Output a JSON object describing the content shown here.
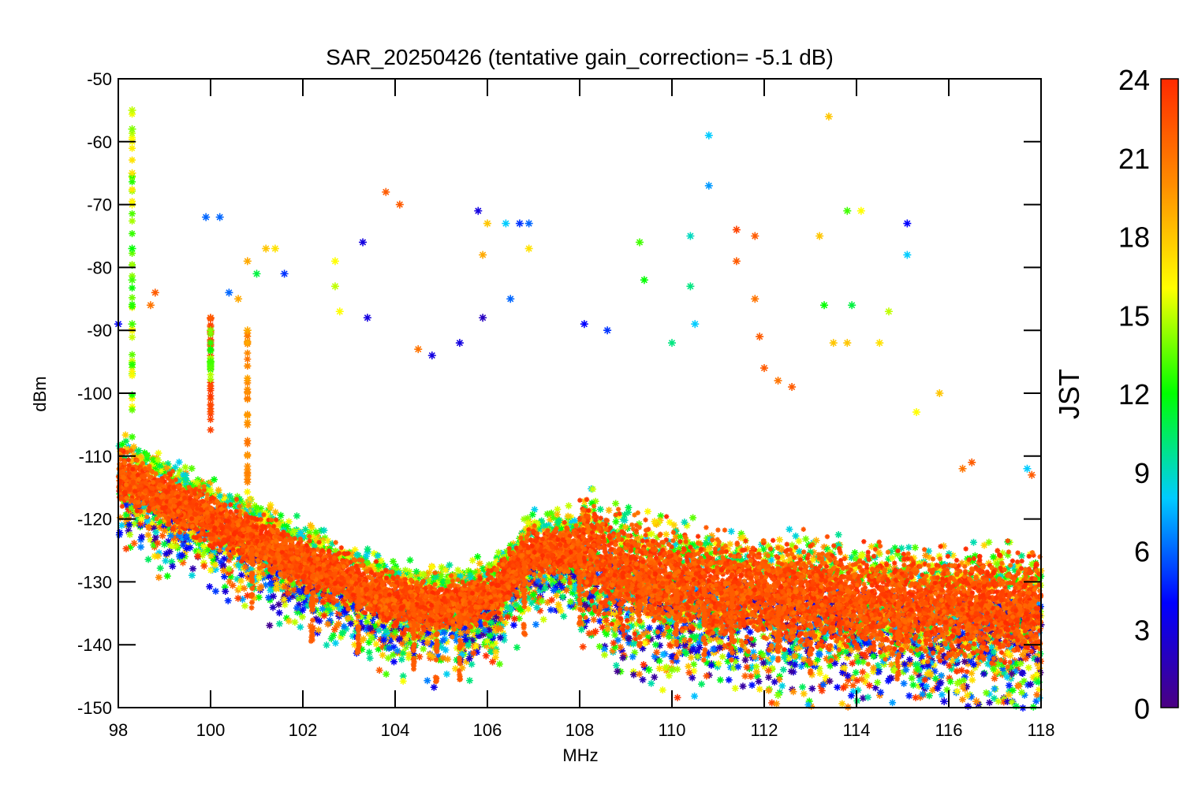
{
  "chart_data": {
    "type": "scatter",
    "title": "SAR_20250426 (tentative gain_correction= -5.1 dB)",
    "xlabel": "MHz",
    "ylabel": "dBm",
    "xlim": [
      98,
      118
    ],
    "ylim": [
      -150,
      -50
    ],
    "x_ticks": [
      "98",
      "100",
      "102",
      "104",
      "106",
      "108",
      "110",
      "112",
      "114",
      "116",
      "118"
    ],
    "x_tick_values": [
      98,
      100,
      102,
      104,
      106,
      108,
      110,
      112,
      114,
      116,
      118
    ],
    "y_ticks": [
      "-50",
      "-60",
      "-70",
      "-80",
      "-90",
      "-100",
      "-110",
      "-120",
      "-130",
      "-140",
      "-150"
    ],
    "y_tick_values": [
      -50,
      -60,
      -70,
      -80,
      -90,
      -100,
      -110,
      -120,
      -130,
      -140,
      -150
    ],
    "grid": false,
    "marker": "asterisk",
    "color_dimension": {
      "label": "JST",
      "range": [
        0,
        24
      ],
      "ticks": [
        "0",
        "3",
        "6",
        "9",
        "12",
        "15",
        "18",
        "21",
        "24"
      ],
      "tick_values": [
        0,
        3,
        6,
        9,
        12,
        15,
        18,
        21,
        24
      ],
      "colormap": [
        "#4b0082",
        "#0000ff",
        "#00ccff",
        "#00ff00",
        "#ffff00",
        "#ff8c00",
        "#ff2a00"
      ]
    },
    "noise_floor": {
      "description_x": [
        98,
        100,
        102,
        104,
        105,
        106,
        106.5,
        107,
        108,
        109,
        110,
        112,
        114,
        116,
        118
      ],
      "y": [
        -113,
        -120,
        -127,
        -133,
        -134,
        -133,
        -129,
        -125,
        -125,
        -128,
        -130,
        -132,
        -133,
        -134,
        -134
      ]
    },
    "points": [
      {
        "x": 98.3,
        "y": -55,
        "t": 15
      },
      {
        "x": 98.3,
        "y": -58,
        "t": 14
      },
      {
        "x": 98.3,
        "y": -60,
        "t": 16
      },
      {
        "x": 98.3,
        "y": -65,
        "t": 17
      },
      {
        "x": 98.3,
        "y": -70,
        "t": 16
      },
      {
        "x": 98.3,
        "y": -77,
        "t": 12
      },
      {
        "x": 98.3,
        "y": -82,
        "t": 13
      },
      {
        "x": 98.3,
        "y": -89,
        "t": 13
      },
      {
        "x": 98.0,
        "y": -89,
        "t": 4
      },
      {
        "x": 98.8,
        "y": -84,
        "t": 22
      },
      {
        "x": 98.7,
        "y": -86,
        "t": 21
      },
      {
        "x": 99.9,
        "y": -72,
        "t": 6
      },
      {
        "x": 100.2,
        "y": -72,
        "t": 6
      },
      {
        "x": 100.0,
        "y": -88,
        "t": 22
      },
      {
        "x": 100.0,
        "y": -90,
        "t": 14
      },
      {
        "x": 100.0,
        "y": -95,
        "t": 13
      },
      {
        "x": 100.4,
        "y": -84,
        "t": 6
      },
      {
        "x": 100.6,
        "y": -85,
        "t": 19
      },
      {
        "x": 100.8,
        "y": -79,
        "t": 19
      },
      {
        "x": 100.8,
        "y": -90,
        "t": 19
      },
      {
        "x": 101.2,
        "y": -77,
        "t": 18
      },
      {
        "x": 101.4,
        "y": -77,
        "t": 17
      },
      {
        "x": 101.6,
        "y": -81,
        "t": 5
      },
      {
        "x": 101.0,
        "y": -81,
        "t": 11
      },
      {
        "x": 102.7,
        "y": -79,
        "t": 16
      },
      {
        "x": 102.7,
        "y": -83,
        "t": 15
      },
      {
        "x": 102.8,
        "y": -87,
        "t": 16
      },
      {
        "x": 103.3,
        "y": -76,
        "t": 3
      },
      {
        "x": 103.4,
        "y": -88,
        "t": 3
      },
      {
        "x": 103.8,
        "y": -68,
        "t": 22
      },
      {
        "x": 104.1,
        "y": -70,
        "t": 22
      },
      {
        "x": 104.5,
        "y": -93,
        "t": 21
      },
      {
        "x": 104.8,
        "y": -94,
        "t": 3
      },
      {
        "x": 105.4,
        "y": -92,
        "t": 3
      },
      {
        "x": 105.8,
        "y": -71,
        "t": 3
      },
      {
        "x": 106.0,
        "y": -73,
        "t": 18
      },
      {
        "x": 105.9,
        "y": -78,
        "t": 19
      },
      {
        "x": 106.4,
        "y": -73,
        "t": 8
      },
      {
        "x": 106.7,
        "y": -73,
        "t": 5
      },
      {
        "x": 106.9,
        "y": -73,
        "t": 6
      },
      {
        "x": 106.9,
        "y": -77,
        "t": 17
      },
      {
        "x": 106.5,
        "y": -85,
        "t": 6
      },
      {
        "x": 105.9,
        "y": -88,
        "t": 2
      },
      {
        "x": 108.1,
        "y": -89,
        "t": 4
      },
      {
        "x": 108.6,
        "y": -90,
        "t": 5
      },
      {
        "x": 109.3,
        "y": -76,
        "t": 13
      },
      {
        "x": 109.4,
        "y": -82,
        "t": 12
      },
      {
        "x": 110.4,
        "y": -75,
        "t": 9
      },
      {
        "x": 110.4,
        "y": -83,
        "t": 10
      },
      {
        "x": 110.8,
        "y": -59,
        "t": 8
      },
      {
        "x": 110.8,
        "y": -67,
        "t": 7
      },
      {
        "x": 110.5,
        "y": -89,
        "t": 8
      },
      {
        "x": 110.0,
        "y": -92,
        "t": 10
      },
      {
        "x": 111.4,
        "y": -74,
        "t": 23
      },
      {
        "x": 111.8,
        "y": -75,
        "t": 22
      },
      {
        "x": 111.4,
        "y": -79,
        "t": 22
      },
      {
        "x": 111.8,
        "y": -85,
        "t": 21
      },
      {
        "x": 111.9,
        "y": -91,
        "t": 22
      },
      {
        "x": 112.0,
        "y": -96,
        "t": 22
      },
      {
        "x": 112.3,
        "y": -98,
        "t": 21
      },
      {
        "x": 112.6,
        "y": -99,
        "t": 22
      },
      {
        "x": 113.2,
        "y": -75,
        "t": 18
      },
      {
        "x": 113.4,
        "y": -56,
        "t": 18
      },
      {
        "x": 113.8,
        "y": -71,
        "t": 13
      },
      {
        "x": 114.1,
        "y": -71,
        "t": 16
      },
      {
        "x": 113.3,
        "y": -86,
        "t": 12
      },
      {
        "x": 113.9,
        "y": -86,
        "t": 11
      },
      {
        "x": 113.5,
        "y": -92,
        "t": 18
      },
      {
        "x": 113.8,
        "y": -92,
        "t": 18
      },
      {
        "x": 114.5,
        "y": -92,
        "t": 17
      },
      {
        "x": 114.7,
        "y": -87,
        "t": 15
      },
      {
        "x": 115.1,
        "y": -73,
        "t": 4
      },
      {
        "x": 115.1,
        "y": -78,
        "t": 8
      },
      {
        "x": 115.8,
        "y": -100,
        "t": 18
      },
      {
        "x": 115.3,
        "y": -103,
        "t": 16
      },
      {
        "x": 116.3,
        "y": -112,
        "t": 21
      },
      {
        "x": 116.5,
        "y": -111,
        "t": 22
      },
      {
        "x": 117.8,
        "y": -113,
        "t": 22
      },
      {
        "x": 117.7,
        "y": -112,
        "t": 8
      },
      {
        "x": 116.6,
        "y": -149,
        "t": 20
      },
      {
        "x": 117.3,
        "y": -148,
        "t": 18
      },
      {
        "x": 115.9,
        "y": -149,
        "t": 3
      },
      {
        "x": 112.3,
        "y": -148,
        "t": 14
      },
      {
        "x": 110.0,
        "y": -144,
        "t": 14
      },
      {
        "x": 109.5,
        "y": -144,
        "t": 12
      },
      {
        "x": 103.5,
        "y": -139,
        "t": 14
      },
      {
        "x": 104.0,
        "y": -138,
        "t": 13
      },
      {
        "x": 99.0,
        "y": -124,
        "t": 11
      },
      {
        "x": 98.5,
        "y": -120,
        "t": 16
      }
    ]
  }
}
